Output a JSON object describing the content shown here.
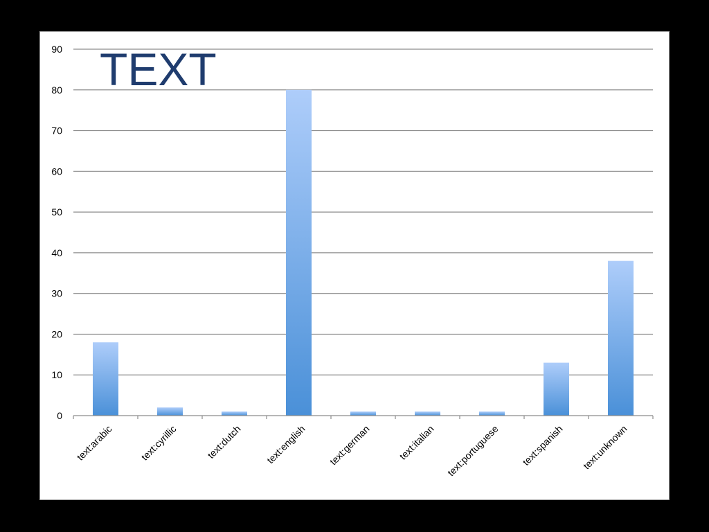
{
  "chart_data": {
    "type": "bar",
    "title": "TEXT",
    "categories": [
      "text:arabic",
      "text:cyrillic",
      "text:dutch",
      "text:english",
      "text:german",
      "text:italian",
      "text:portuguese",
      "text:spanish",
      "text:unknown"
    ],
    "values": [
      18,
      2,
      1,
      80,
      1,
      1,
      1,
      13,
      38
    ],
    "ylim": [
      0,
      90
    ],
    "yticks": [
      0,
      10,
      20,
      30,
      40,
      50,
      60,
      70,
      80,
      90
    ],
    "grid": true,
    "legend": "none",
    "colors": {
      "bar_top": "#aecdfa",
      "bar_bottom": "#4a90d8",
      "grid": "#8c8c8c",
      "title": "#1f3c6e"
    }
  }
}
